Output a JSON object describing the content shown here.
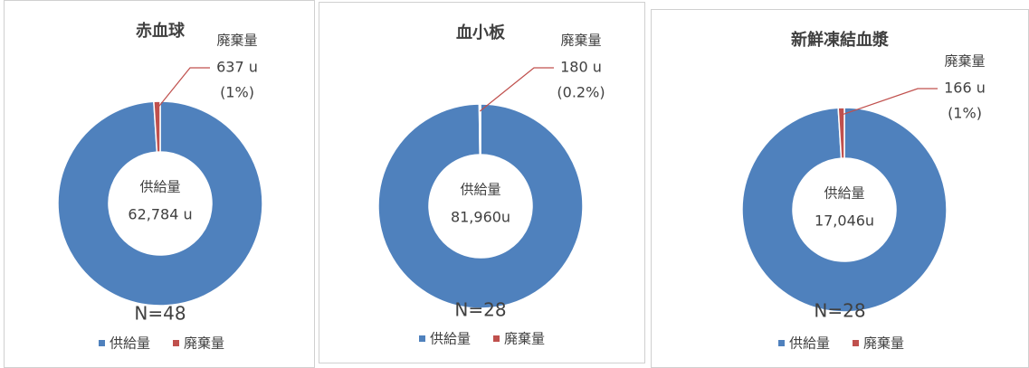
{
  "chart_data": [
    {
      "type": "donut",
      "title": "赤血球",
      "categories": [
        "供給量",
        "廃棄量"
      ],
      "values": [
        62784,
        637
      ],
      "value_labels": [
        "62,784 u",
        "637 u"
      ],
      "percent_label": "(1%)",
      "colors": [
        "#4f81bd",
        "#c0504d"
      ],
      "note": "N=48"
    },
    {
      "type": "donut",
      "title": "血小板",
      "categories": [
        "供給量",
        "廃棄量"
      ],
      "values": [
        81960,
        180
      ],
      "value_labels": [
        "81,960u",
        "180 u"
      ],
      "percent_label": "(0.2%)",
      "colors": [
        "#4f81bd",
        "#c0504d"
      ],
      "note": "N=28"
    },
    {
      "type": "donut",
      "title": "新鮮凍結血漿",
      "categories": [
        "供給量",
        "廃棄量"
      ],
      "values": [
        17046,
        166
      ],
      "value_labels": [
        "17,046u",
        "166 u"
      ],
      "percent_label": "(1%)",
      "colors": [
        "#4f81bd",
        "#c0504d"
      ],
      "note": "N=28"
    }
  ]
}
